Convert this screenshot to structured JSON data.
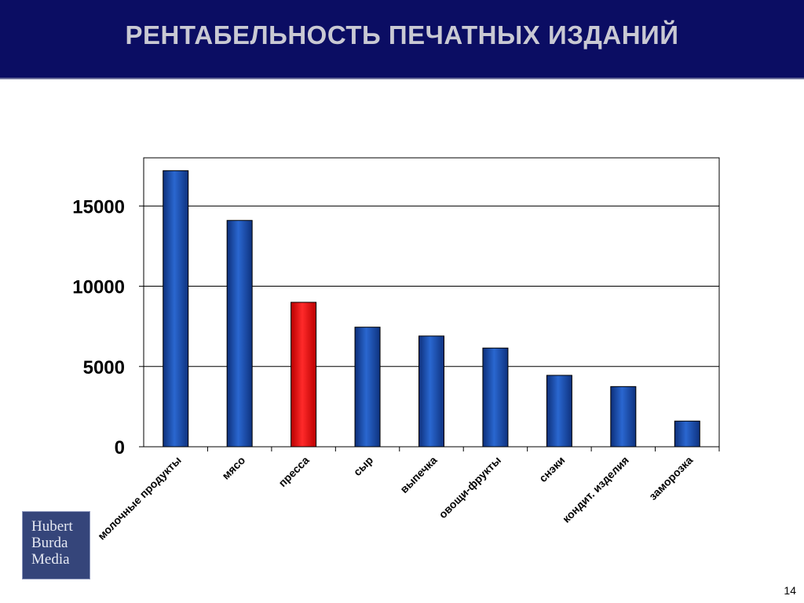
{
  "header": {
    "title": "РЕНТАБЕЛЬНОСТЬ ПЕЧАТНЫХ ИЗДАНИЙ"
  },
  "logo": {
    "lines": [
      "Hubert",
      "Burda",
      "Media"
    ]
  },
  "page_number": "14",
  "colors": {
    "header_bg": "#0b0d63",
    "bar": "#1a4fb0",
    "highlight_bar": "#ee1111"
  },
  "chart_data": {
    "type": "bar",
    "categories": [
      "молочные продукты",
      "мясо",
      "пресса",
      "сыр",
      "выпечка",
      "овощи-фрукты",
      "снэки",
      "кондит. изделия",
      "заморозка"
    ],
    "values": [
      17200,
      14100,
      9000,
      7450,
      6900,
      6150,
      4450,
      3750,
      1600
    ],
    "highlight_index": 2,
    "title": "",
    "xlabel": "",
    "ylabel": "",
    "ylim": [
      0,
      18000
    ],
    "yticks": [
      0,
      5000,
      10000,
      15000
    ],
    "grid": true,
    "legend": "none"
  }
}
